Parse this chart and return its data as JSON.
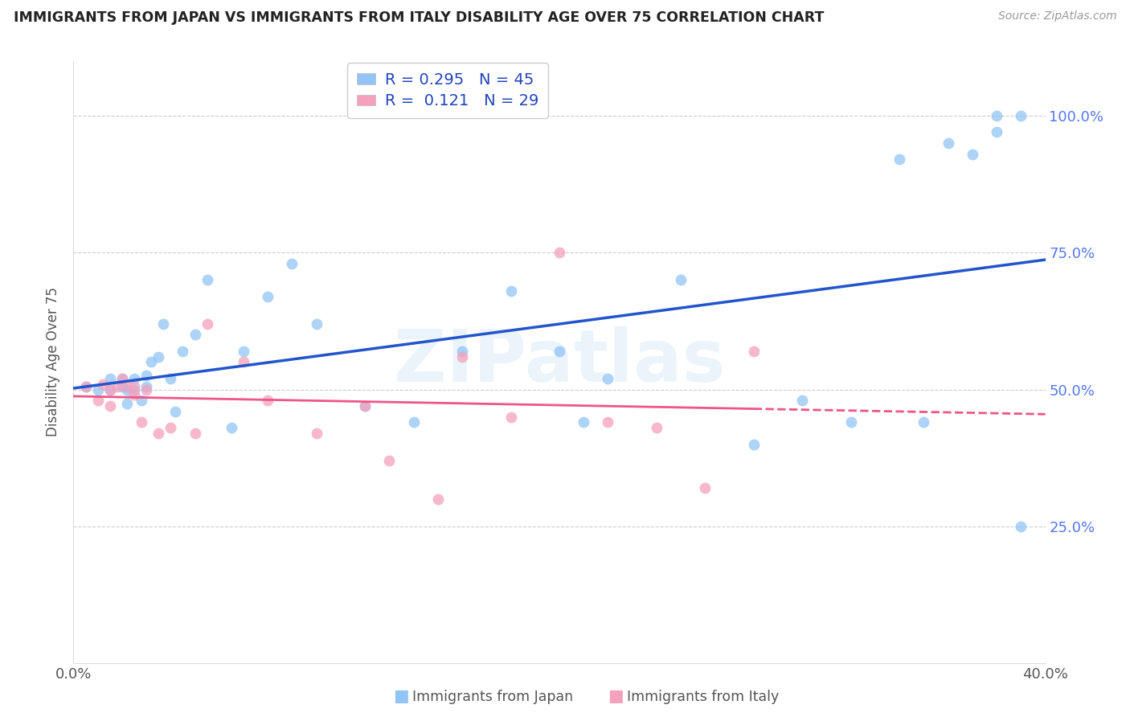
{
  "title": "IMMIGRANTS FROM JAPAN VS IMMIGRANTS FROM ITALY DISABILITY AGE OVER 75 CORRELATION CHART",
  "source": "Source: ZipAtlas.com",
  "ylabel_label": "Disability Age Over 75",
  "xlim": [
    0.0,
    0.4
  ],
  "ylim": [
    0.0,
    1.1
  ],
  "ytick_labels": [
    "25.0%",
    "50.0%",
    "75.0%",
    "100.0%"
  ],
  "ytick_values": [
    0.25,
    0.5,
    0.75,
    1.0
  ],
  "r_japan": "0.295",
  "n_japan": "45",
  "r_italy": "0.121",
  "n_italy": "29",
  "color_japan": "#92C5F5",
  "color_italy": "#F5A0BC",
  "line_color_japan": "#2255CC",
  "line_color_italy": "#EE5588",
  "watermark": "ZIPatlas",
  "japan_x": [
    0.005,
    0.01,
    0.015,
    0.015,
    0.02,
    0.02,
    0.022,
    0.022,
    0.025,
    0.025,
    0.028,
    0.03,
    0.03,
    0.032,
    0.035,
    0.037,
    0.04,
    0.042,
    0.045,
    0.05,
    0.055,
    0.065,
    0.07,
    0.08,
    0.09,
    0.1,
    0.12,
    0.14,
    0.16,
    0.18,
    0.2,
    0.21,
    0.22,
    0.25,
    0.28,
    0.3,
    0.32,
    0.34,
    0.35,
    0.36,
    0.37,
    0.38,
    0.38,
    0.39,
    0.39
  ],
  "japan_y": [
    0.505,
    0.5,
    0.5,
    0.52,
    0.505,
    0.52,
    0.5,
    0.475,
    0.52,
    0.5,
    0.48,
    0.525,
    0.505,
    0.55,
    0.56,
    0.62,
    0.52,
    0.46,
    0.57,
    0.6,
    0.7,
    0.43,
    0.57,
    0.67,
    0.73,
    0.62,
    0.47,
    0.44,
    0.57,
    0.68,
    0.57,
    0.44,
    0.52,
    0.7,
    0.4,
    0.48,
    0.44,
    0.92,
    0.44,
    0.95,
    0.93,
    0.97,
    1.0,
    1.0,
    0.25
  ],
  "italy_x": [
    0.005,
    0.01,
    0.012,
    0.015,
    0.015,
    0.018,
    0.02,
    0.022,
    0.025,
    0.025,
    0.028,
    0.03,
    0.035,
    0.04,
    0.05,
    0.055,
    0.07,
    0.08,
    0.1,
    0.12,
    0.13,
    0.15,
    0.16,
    0.18,
    0.2,
    0.22,
    0.24,
    0.26,
    0.28
  ],
  "italy_y": [
    0.505,
    0.48,
    0.51,
    0.5,
    0.47,
    0.505,
    0.52,
    0.505,
    0.49,
    0.505,
    0.44,
    0.5,
    0.42,
    0.43,
    0.42,
    0.62,
    0.55,
    0.48,
    0.42,
    0.47,
    0.37,
    0.3,
    0.56,
    0.45,
    0.75,
    0.44,
    0.43,
    0.32,
    0.57
  ],
  "italy_solid_xlim": 0.28
}
